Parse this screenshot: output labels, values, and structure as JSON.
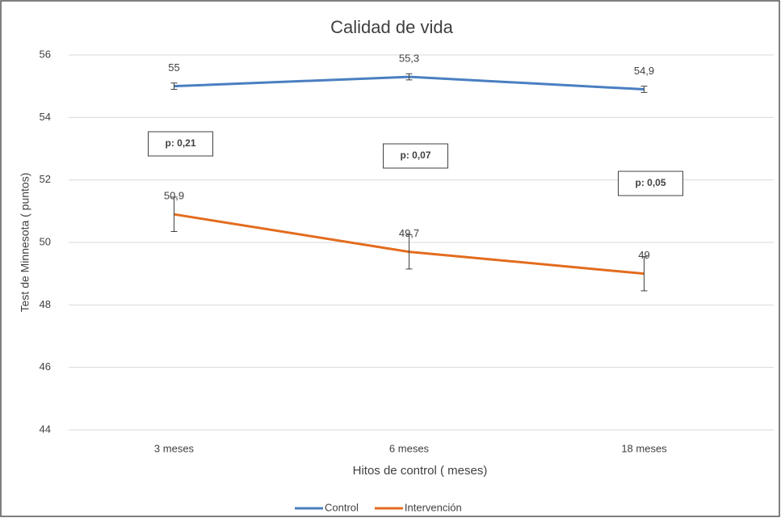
{
  "chart_data": {
    "type": "line",
    "title": "Calidad de vida",
    "x_label": "Hitos de control ( meses)",
    "y_label": "Test de  Minnesota ( puntos)",
    "categories": [
      "3 meses",
      "6 meses",
      "18 meses"
    ],
    "series": [
      {
        "name": "Control",
        "color": "#4a7fc1",
        "values": [
          55,
          55.3,
          54.9
        ],
        "value_labels": [
          "55",
          "55,3",
          "54,9"
        ],
        "errors": [
          0.1,
          0.1,
          0.1
        ]
      },
      {
        "name": "Intervención",
        "color": "#e36c1e",
        "values": [
          50.9,
          49.7,
          49
        ],
        "value_labels": [
          "50,9",
          "49,7",
          "49"
        ],
        "errors": [
          0.55,
          0.55,
          0.55
        ]
      }
    ],
    "annotations": [
      "p: 0,21",
      "p: 0,07",
      "p: 0,05"
    ],
    "ylim": [
      44,
      56
    ],
    "yticks": [
      44,
      46,
      48,
      50,
      52,
      54,
      56
    ],
    "grid": true,
    "legend": "bottom"
  }
}
